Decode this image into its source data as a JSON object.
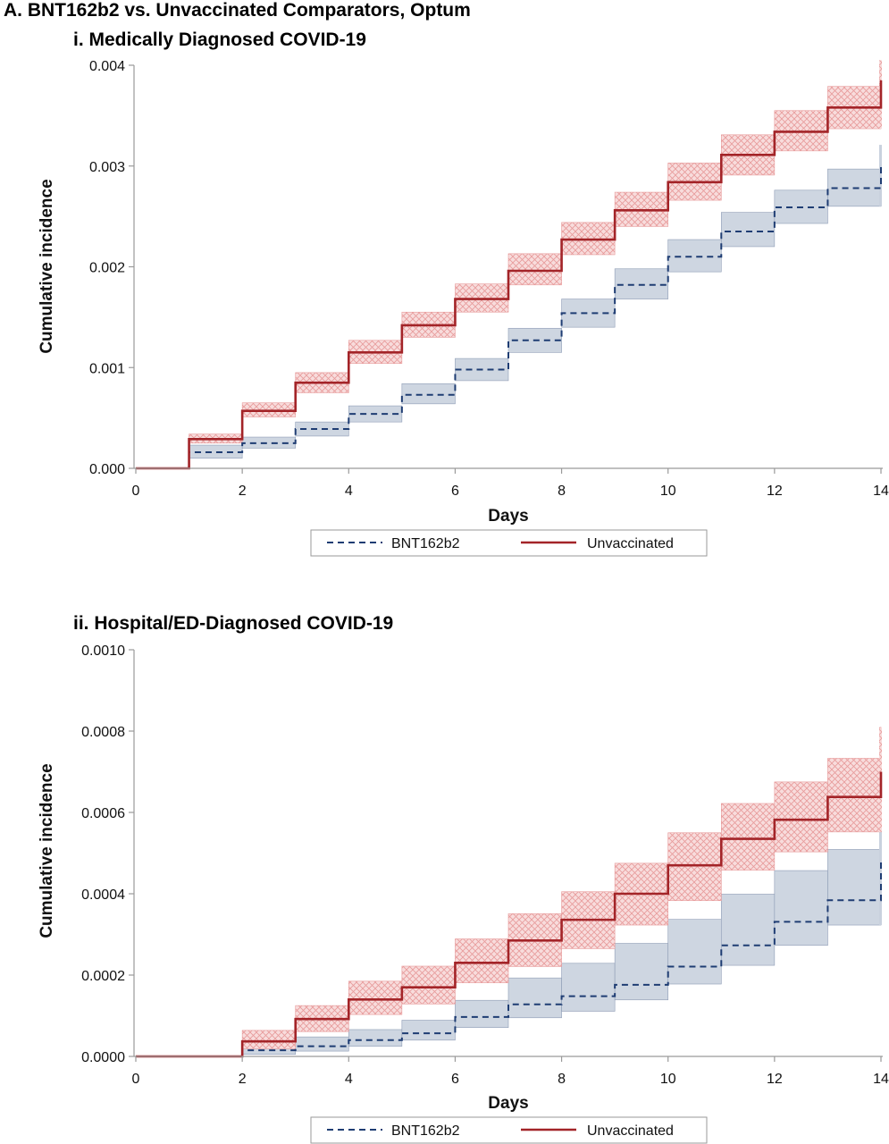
{
  "figure_title": "A. BNT162b2 vs. Unvaccinated Comparators, Optum",
  "colors": {
    "vaccinated_line": "#1f3d73",
    "vaccinated_band": "#c9d1de",
    "vaccinated_band_edge": "#8e9cb5",
    "unvaccinated_line": "#a32428",
    "unvaccinated_band": "#f8dcdc",
    "unvaccinated_hatch": "#e79a9a",
    "axis": "#9a9a9a",
    "legend_border": "#9a9a9a"
  },
  "chart_data": [
    {
      "type": "line",
      "step": true,
      "title": "i. Medically Diagnosed COVID-19",
      "xlabel": "Days",
      "ylabel": "Cumulative incidence",
      "xlim": [
        0,
        14
      ],
      "ylim": [
        0,
        0.004
      ],
      "xticks": [
        "0",
        "2",
        "4",
        "6",
        "8",
        "10",
        "12",
        "14"
      ],
      "yticks": [
        "0.000",
        "0.001",
        "0.002",
        "0.003",
        "0.004"
      ],
      "x": [
        0,
        1,
        2,
        3,
        4,
        5,
        6,
        7,
        8,
        9,
        10,
        11,
        12,
        13
      ],
      "legend": "bottom-center",
      "series": [
        {
          "name": "BNT162b2",
          "style": "dashed",
          "values": [
            0.0,
            0.00016,
            0.00025,
            0.00039,
            0.00054,
            0.00073,
            0.00098,
            0.00127,
            0.00154,
            0.00182,
            0.0021,
            0.00235,
            0.00259,
            0.00278
          ],
          "lower": [
            0.0,
            0.0001,
            0.0002,
            0.00032,
            0.00046,
            0.00064,
            0.00087,
            0.00115,
            0.0014,
            0.00168,
            0.00195,
            0.0022,
            0.00243,
            0.0026
          ],
          "upper": [
            0.0,
            0.00023,
            0.00031,
            0.00046,
            0.00062,
            0.00084,
            0.00109,
            0.00139,
            0.00168,
            0.00198,
            0.00227,
            0.00254,
            0.00276,
            0.00297
          ],
          "end_value": 0.00302,
          "end_upper": 0.00321
        },
        {
          "name": "Unvaccinated",
          "style": "solid",
          "values": [
            0.0,
            0.00029,
            0.00057,
            0.00085,
            0.00115,
            0.00142,
            0.00168,
            0.00196,
            0.00227,
            0.00256,
            0.00284,
            0.00311,
            0.00334,
            0.00358
          ],
          "lower": [
            0.0,
            0.00025,
            0.00051,
            0.00075,
            0.00104,
            0.0013,
            0.00155,
            0.00182,
            0.00212,
            0.0024,
            0.00266,
            0.00291,
            0.00315,
            0.00337
          ],
          "upper": [
            0.0,
            0.00034,
            0.00065,
            0.00095,
            0.00127,
            0.00155,
            0.00183,
            0.00213,
            0.00244,
            0.00274,
            0.00303,
            0.00331,
            0.00355,
            0.00379
          ],
          "end_value": 0.00385,
          "end_upper": 0.00405
        }
      ]
    },
    {
      "type": "line",
      "step": true,
      "title": "ii. Hospital/ED-Diagnosed COVID-19",
      "xlabel": "Days",
      "ylabel": "Cumulative incidence",
      "xlim": [
        0,
        14
      ],
      "ylim": [
        0,
        0.001
      ],
      "xticks": [
        "0",
        "2",
        "4",
        "6",
        "8",
        "10",
        "12",
        "14"
      ],
      "yticks": [
        "0.0000",
        "0.0002",
        "0.0004",
        "0.0006",
        "0.0008",
        "0.0010"
      ],
      "x": [
        0,
        1,
        2,
        3,
        4,
        5,
        6,
        7,
        8,
        9,
        10,
        11,
        12,
        13
      ],
      "legend": "bottom-center",
      "series": [
        {
          "name": "BNT162b2",
          "style": "dashed",
          "values": [
            0.0,
            0.0,
            1.5e-05,
            2.5e-05,
            4e-05,
            5.7e-05,
            9.7e-05,
            0.000128,
            0.000148,
            0.000176,
            0.000221,
            0.000273,
            0.000331,
            0.000384
          ],
          "lower": [
            0.0,
            0.0,
            5e-06,
            1.3e-05,
            2.5e-05,
            4e-05,
            7.1e-05,
            9.5e-05,
            0.000111,
            0.000139,
            0.000178,
            0.000224,
            0.000273,
            0.000323
          ],
          "upper": [
            0.0,
            0.0,
            3.3e-05,
            4.8e-05,
            6.6e-05,
            8.9e-05,
            0.000138,
            0.000193,
            0.000229,
            0.000278,
            0.000337,
            0.000399,
            0.000457,
            0.000509
          ],
          "end_value": 0.00048,
          "end_upper": 0.00057
        },
        {
          "name": "Unvaccinated",
          "style": "solid",
          "values": [
            0.0,
            0.0,
            3.7e-05,
            9.2e-05,
            0.00014,
            0.00017,
            0.00023,
            0.000285,
            0.000336,
            0.0004,
            0.00047,
            0.000535,
            0.000582,
            0.000638
          ],
          "lower": [
            0.0,
            0.0,
            1.9e-05,
            6.1e-05,
            0.000103,
            0.000129,
            0.000181,
            0.000221,
            0.000265,
            0.000323,
            0.000383,
            0.000458,
            0.000503,
            0.000552
          ],
          "upper": [
            0.0,
            0.0,
            6.4e-05,
            0.000125,
            0.000185,
            0.000222,
            0.000289,
            0.000351,
            0.000405,
            0.000475,
            0.00055,
            0.000622,
            0.000675,
            0.000733
          ],
          "end_value": 0.0007,
          "end_upper": 0.00081
        }
      ]
    }
  ]
}
